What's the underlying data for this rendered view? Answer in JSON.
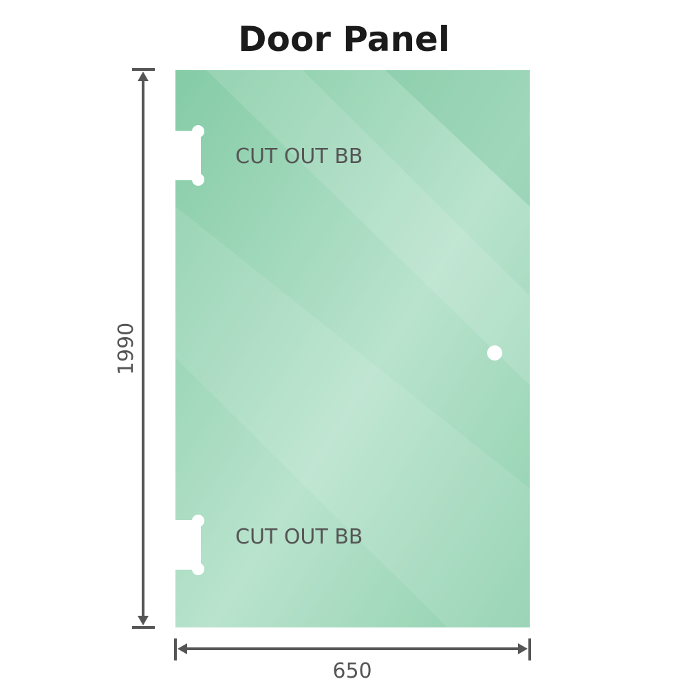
{
  "title": "Door Panel",
  "panel": {
    "color": "#8fd0ae",
    "cutout_labels": [
      "CUT OUT BB",
      "CUT OUT BB"
    ]
  },
  "dimensions": {
    "height": "1990",
    "width": "650",
    "line_color": "#555555"
  }
}
